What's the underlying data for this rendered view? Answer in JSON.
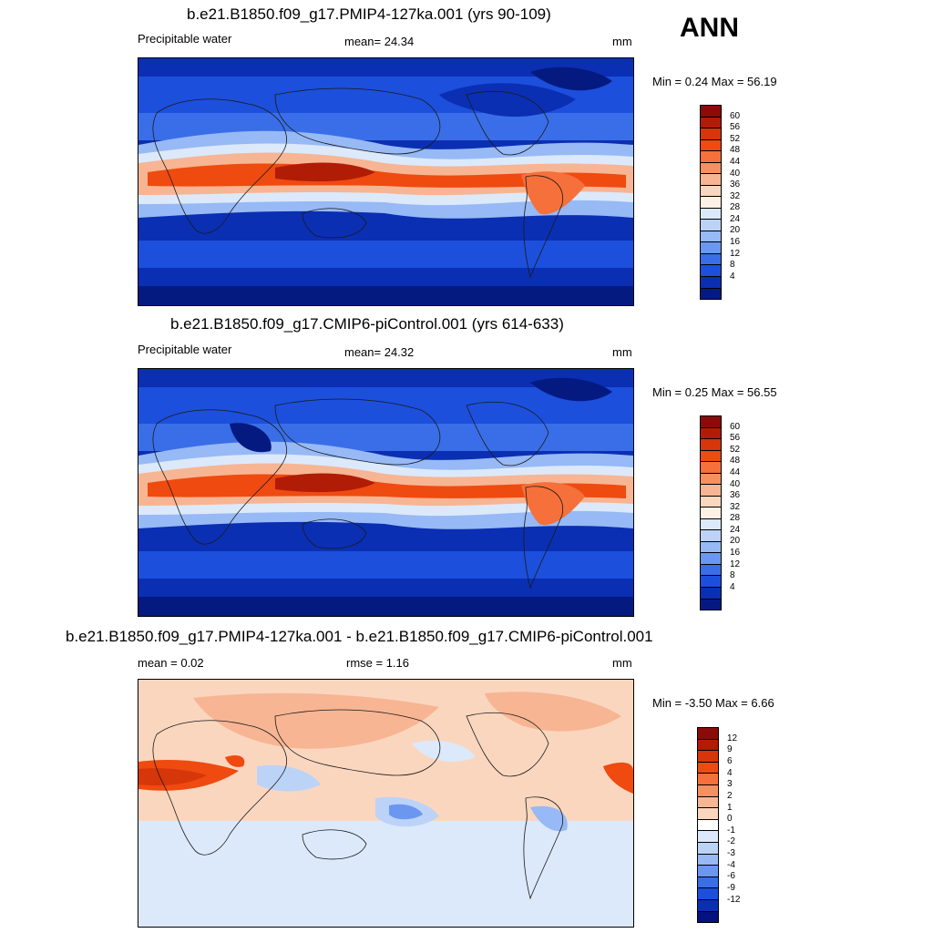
{
  "season": "ANN",
  "panels": [
    {
      "title": "b.e21.B1850.f09_g17.PMIP4-127ka.001 (yrs 90-109)",
      "left_label": "Precipitable water",
      "stat_label": "mean=  24.34",
      "units": "mm",
      "minmax": "Min =   0.24 Max =  56.19"
    },
    {
      "title": "b.e21.B1850.f09_g17.CMIP6-piControl.001 (yrs 614-633)",
      "left_label": "Precipitable water",
      "stat_label": "mean=  24.32",
      "units": "mm",
      "minmax": "Min =   0.25 Max =  56.55"
    },
    {
      "title": "b.e21.B1850.f09_g17.PMIP4-127ka.001 - b.e21.B1850.f09_g17.CMIP6-piControl.001",
      "left_label": "mean =   0.02",
      "stat_label": "rmse =   1.16",
      "units": "mm",
      "minmax": "Min =  -3.50 Max =   6.66"
    }
  ],
  "colorbars": {
    "abs": {
      "labels": [
        "60",
        "56",
        "52",
        "48",
        "44",
        "40",
        "36",
        "32",
        "28",
        "24",
        "20",
        "16",
        "12",
        "8",
        "4"
      ],
      "colors": [
        "#8b0a0a",
        "#b01c06",
        "#d6360a",
        "#ef4a10",
        "#f5703a",
        "#f79060",
        "#f7b593",
        "#fbd6bf",
        "#fdf0e4",
        "#dce9fb",
        "#bcd3f8",
        "#97b9f5",
        "#6b97f0",
        "#3a6ee8",
        "#1c4fdb",
        "#0a2fb3",
        "#051a80"
      ]
    },
    "diff": {
      "labels": [
        "12",
        "9",
        "6",
        "4",
        "3",
        "2",
        "1",
        "0",
        "-1",
        "-2",
        "-3",
        "-4",
        "-6",
        "-9",
        "-12"
      ],
      "colors": [
        "#8b0a0a",
        "#b01c06",
        "#d6360a",
        "#ef4a10",
        "#f5703a",
        "#f79060",
        "#f7b593",
        "#fbd6bf",
        "#ffffff",
        "#dce9fb",
        "#bcd3f8",
        "#97b9f5",
        "#6b97f0",
        "#3a6ee8",
        "#1c4fdb",
        "#0a2fb3",
        "#05117e"
      ]
    }
  }
}
